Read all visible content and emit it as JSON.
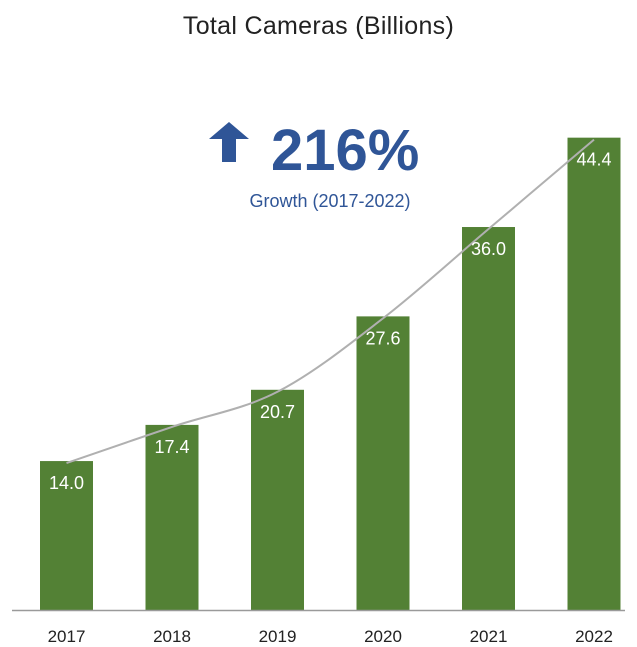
{
  "chart_data": {
    "type": "bar",
    "title": "Total Cameras (Billions)",
    "categories": [
      "2017",
      "2018",
      "2019",
      "2020",
      "2021",
      "2022"
    ],
    "values": [
      14.0,
      17.4,
      20.7,
      27.6,
      36.0,
      44.4
    ],
    "value_labels": [
      "14.0",
      "17.4",
      "20.7",
      "27.6",
      "36.0",
      "44.4"
    ],
    "ylim": [
      0,
      47
    ],
    "grid": false,
    "trend_line": true,
    "bar_color": "#538135",
    "trend_color": "#b0b0b0",
    "annotation": {
      "icon": "up-arrow-icon",
      "value": "216%",
      "caption": "Growth (2017-2022)",
      "color": "#2f5597"
    }
  }
}
